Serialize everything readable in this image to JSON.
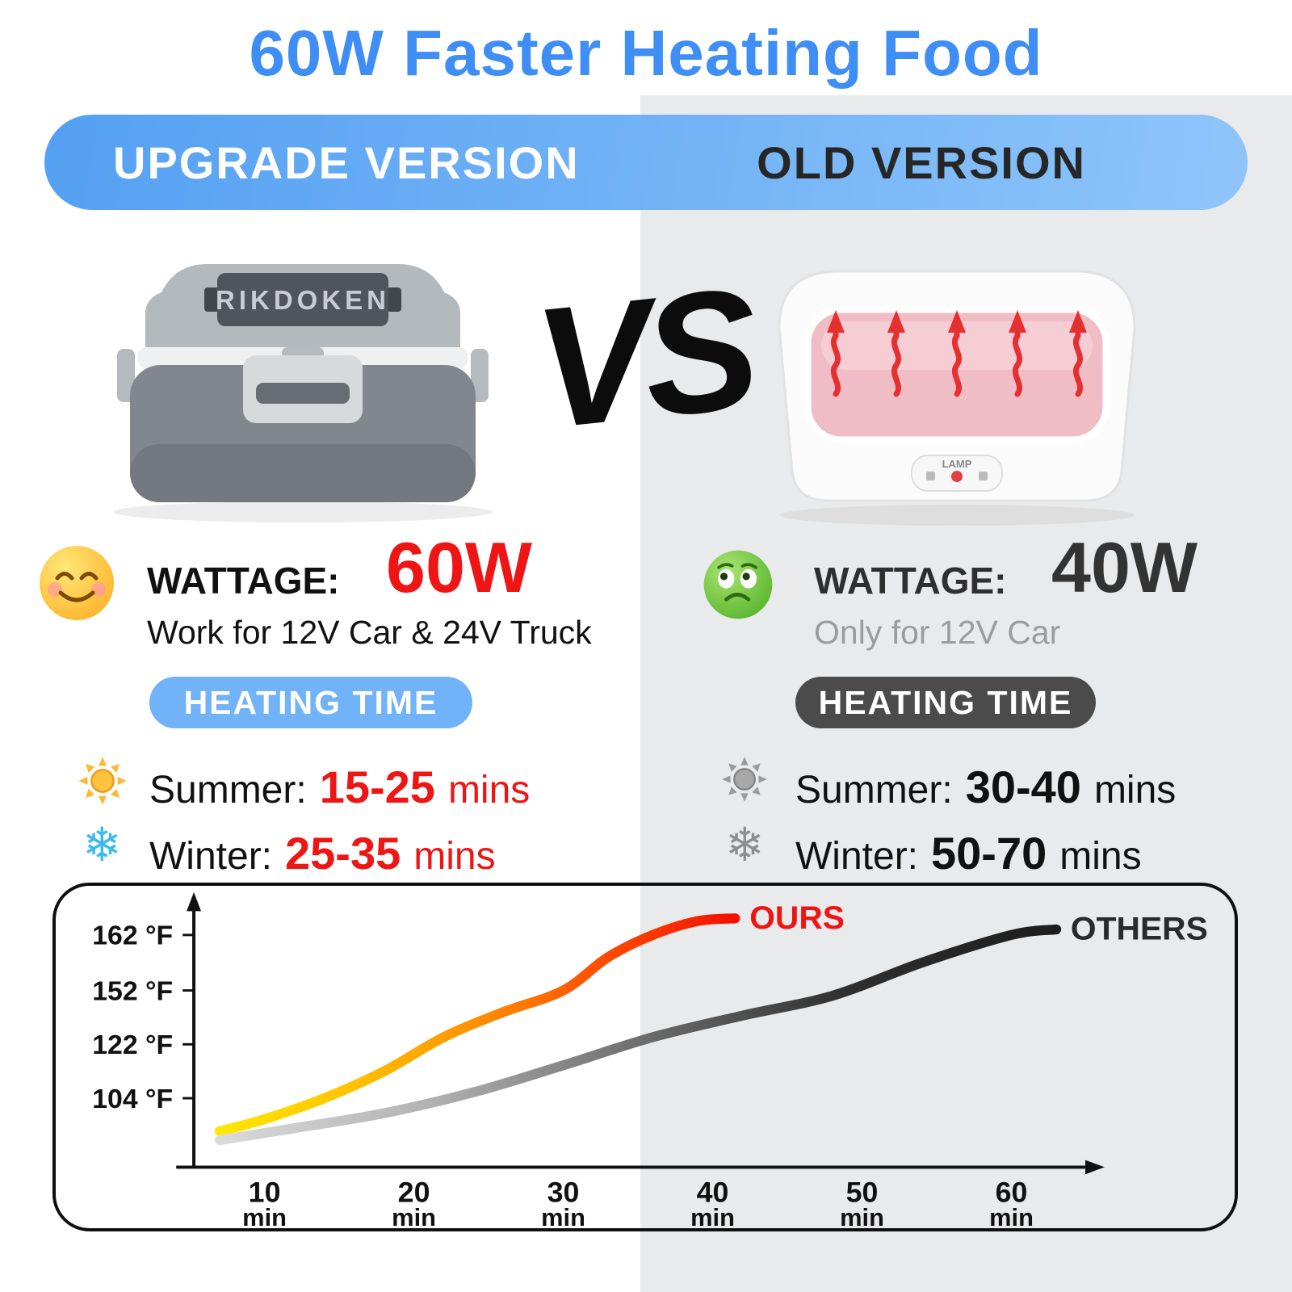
{
  "title": "60W Faster Heating Food",
  "banner": {
    "left": "UPGRADE VERSION",
    "right": "OLD VERSION"
  },
  "vs_label": "VS",
  "upgrade": {
    "brand": "RIKDOKEN",
    "wattage_label": "WATTAGE:",
    "wattage_value": "60W",
    "compatibility": "Work for 12V Car & 24V Truck",
    "heating_badge": "HEATING TIME",
    "summer_label": "Summer:",
    "summer_value": "15-25",
    "summer_unit": "mins",
    "winter_label": "Winter:",
    "winter_value": "25-35",
    "winter_unit": "mins"
  },
  "old": {
    "panel_label": "LAMP",
    "wattage_label": "WATTAGE:",
    "wattage_value": "40W",
    "compatibility": "Only for 12V Car",
    "heating_badge": "HEATING TIME",
    "summer_label": "Summer:",
    "summer_value": "30-40",
    "summer_unit": "mins",
    "winter_label": "Winter:",
    "winter_value": "50-70",
    "winter_unit": "mins"
  },
  "colors": {
    "title_blue": "#3e8ef5",
    "banner_blue": "#5aa3f3",
    "accent_red": "#ee1515",
    "pill_blue": "#70b3f8",
    "pill_dark": "#4b4b4b",
    "right_background": "#e9eaeb"
  },
  "chart_data": {
    "type": "line",
    "x_unit": "min",
    "x_ticks": [
      10,
      20,
      30,
      40,
      50,
      60
    ],
    "y_ticks": [
      {
        "temp": 162,
        "label": "162 °F"
      },
      {
        "temp": 152,
        "label": "152 °F"
      },
      {
        "temp": 122,
        "label": "122 °F"
      },
      {
        "temp": 104,
        "label": "104 °F"
      }
    ],
    "x_range": [
      5,
      65
    ],
    "grid": false,
    "legend_position": "end-of-line",
    "series": [
      {
        "name": "OURS",
        "label_color": "#ee1515",
        "gradient": [
          "#ffe800",
          "#ffc400",
          "#ff8f00",
          "#ff4a00",
          "#f21000"
        ],
        "points": [
          [
            7,
            93
          ],
          [
            10,
            97
          ],
          [
            14,
            104
          ],
          [
            18,
            113
          ],
          [
            22,
            126
          ],
          [
            26,
            140
          ],
          [
            30,
            152
          ],
          [
            33,
            158
          ],
          [
            36,
            162
          ],
          [
            39,
            164.5
          ],
          [
            41.5,
            165
          ]
        ]
      },
      {
        "name": "OTHERS",
        "label_color": "#2a2a2a",
        "gradient": [
          "#dadada",
          "#b2b2b2",
          "#6e6e6e",
          "#2f2f2f",
          "#1d1d1d"
        ],
        "points": [
          [
            7,
            90
          ],
          [
            12,
            94
          ],
          [
            18,
            99
          ],
          [
            24,
            106
          ],
          [
            30,
            115
          ],
          [
            36,
            126
          ],
          [
            42,
            138
          ],
          [
            48,
            149
          ],
          [
            54,
            157
          ],
          [
            60,
            162
          ],
          [
            63,
            163
          ]
        ]
      }
    ]
  }
}
